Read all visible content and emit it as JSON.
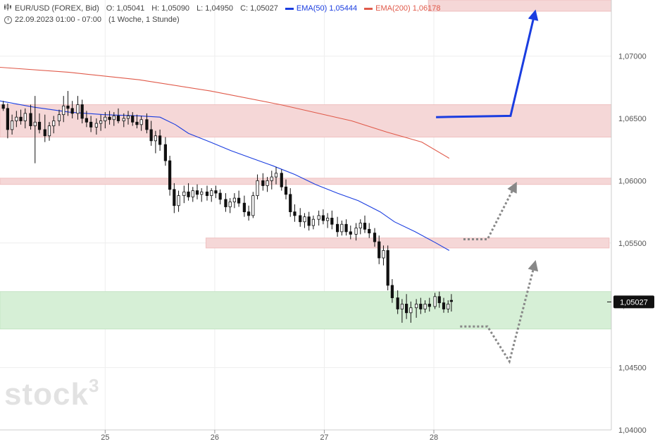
{
  "header": {
    "symbol": "EUR/USD (FOREX, Bid)",
    "open": "O: 1,05041",
    "high": "H: 1,05090",
    "low": "L: 1,04950",
    "close": "C: 1,05027",
    "ema50_label": "EMA(50)",
    "ema50_value": "1,05444",
    "ema200_label": "EMA(200)",
    "ema200_value": "1,06178",
    "period": "22.09.2023 01:00 - 07:00",
    "interval": "(1 Woche, 1 Stunde)"
  },
  "logo": {
    "text": "stock",
    "sup": "3"
  },
  "colors": {
    "ema50": "#1a3de0",
    "ema200": "#e05a4a",
    "resistance": "#f5d7d7",
    "support": "#d6efd6",
    "arrow_blue": "#1a3de0",
    "arrow_gray": "#888888"
  },
  "chart_data": {
    "type": "candlestick",
    "ylim": [
      1.04,
      1.0745
    ],
    "y_ticks": [
      1.04,
      1.045,
      1.05,
      1.055,
      1.06,
      1.065,
      1.07
    ],
    "y_tick_labels": [
      "1,04000",
      "1,04500",
      "1,05000",
      "1,05500",
      "1,06000",
      "1,06500",
      "1,07000"
    ],
    "x_ticks": [
      25,
      26,
      27,
      28
    ],
    "x_tick_labels": [
      "25",
      "26",
      "27",
      "28"
    ],
    "x_range": [
      24.04,
      29.62
    ],
    "last_price": 1.05027,
    "last_price_label": "1,05027",
    "zones": [
      {
        "kind": "resistance",
        "x_from": 24.04,
        "x_to": 29.62,
        "y_from": 1.0635,
        "y_to": 1.0661
      },
      {
        "kind": "resistance",
        "x_from": 24.04,
        "x_to": 29.62,
        "y_from": 1.0597,
        "y_to": 1.0602
      },
      {
        "kind": "resistance",
        "x_from": 25.92,
        "x_to": 29.6,
        "y_from": 1.0546,
        "y_to": 1.0554
      },
      {
        "kind": "resistance",
        "x_from": 27.95,
        "x_to": 29.62,
        "y_from": 1.0736,
        "y_to": 1.0745
      },
      {
        "kind": "support",
        "x_from": 24.04,
        "x_to": 29.62,
        "y_from": 1.0481,
        "y_to": 1.0511
      }
    ],
    "ema200": {
      "x": [
        24.04,
        24.67,
        25.31,
        25.96,
        26.6,
        27.25,
        27.57,
        27.89,
        28.14
      ],
      "y": [
        1.0691,
        1.0687,
        1.0681,
        1.0672,
        1.0661,
        1.0648,
        1.0639,
        1.0631,
        1.0618
      ]
    },
    "ema50": {
      "x": [
        24.04,
        24.35,
        24.67,
        24.99,
        25.31,
        25.5,
        25.64,
        25.76,
        25.96,
        26.15,
        26.34,
        26.53,
        26.73,
        26.92,
        27.12,
        27.31,
        27.51,
        27.64,
        27.83,
        28.02,
        28.14
      ],
      "y": [
        1.0664,
        1.0659,
        1.0655,
        1.0653,
        1.0652,
        1.0651,
        1.0645,
        1.0638,
        1.0631,
        1.0624,
        1.0618,
        1.0612,
        1.0605,
        1.0597,
        1.059,
        1.0584,
        1.0575,
        1.0567,
        1.0559,
        1.055,
        1.0544
      ]
    },
    "scenario_paths": [
      {
        "style": "blue-solid",
        "x": [
          28.02,
          28.7,
          28.92
        ],
        "y": [
          1.0651,
          1.0652,
          1.0734
        ]
      },
      {
        "style": "gray-dotted",
        "x": [
          28.27,
          28.49,
          28.74
        ],
        "y": [
          1.0553,
          1.0553,
          1.0596
        ]
      },
      {
        "style": "gray-dotted",
        "x": [
          28.24,
          28.49,
          28.69,
          28.92
        ],
        "y": [
          1.0483,
          1.0483,
          1.0455,
          1.0533
        ]
      }
    ],
    "candles": [
      [
        24.07,
        1.0661,
        1.0664,
        1.0656,
        1.0658
      ],
      [
        24.11,
        1.0658,
        1.0662,
        1.0634,
        1.0641
      ],
      [
        24.15,
        1.0641,
        1.0653,
        1.0637,
        1.0648
      ],
      [
        24.19,
        1.0648,
        1.0656,
        1.0643,
        1.0651
      ],
      [
        24.23,
        1.0651,
        1.0657,
        1.0645,
        1.0648
      ],
      [
        24.27,
        1.0648,
        1.0658,
        1.0642,
        1.0654
      ],
      [
        24.32,
        1.0654,
        1.0661,
        1.0641,
        1.0644
      ],
      [
        24.36,
        1.0644,
        1.0668,
        1.0614,
        1.0647
      ],
      [
        24.4,
        1.0647,
        1.0654,
        1.0638,
        1.0641
      ],
      [
        24.45,
        1.0641,
        1.0653,
        1.0631,
        1.0636
      ],
      [
        24.49,
        1.0636,
        1.0647,
        1.0632,
        1.0644
      ],
      [
        24.53,
        1.0644,
        1.0652,
        1.0638,
        1.0648
      ],
      [
        24.58,
        1.0648,
        1.0657,
        1.0644,
        1.0653
      ],
      [
        24.62,
        1.0653,
        1.0668,
        1.0647,
        1.066
      ],
      [
        24.66,
        1.066,
        1.0672,
        1.0652,
        1.0658
      ],
      [
        24.7,
        1.0658,
        1.0664,
        1.065,
        1.0654
      ],
      [
        24.75,
        1.0654,
        1.0668,
        1.0649,
        1.0661
      ],
      [
        24.79,
        1.0661,
        1.0665,
        1.0646,
        1.065
      ],
      [
        24.83,
        1.065,
        1.0656,
        1.0643,
        1.0647
      ],
      [
        24.87,
        1.0647,
        1.0652,
        1.0639,
        1.0643
      ],
      [
        24.92,
        1.0643,
        1.065,
        1.0637,
        1.0646
      ],
      [
        24.96,
        1.0646,
        1.0653,
        1.064,
        1.0648
      ],
      [
        25.0,
        1.0648,
        1.0655,
        1.0642,
        1.0651
      ],
      [
        25.04,
        1.0651,
        1.0656,
        1.0645,
        1.0649
      ],
      [
        25.08,
        1.0649,
        1.0655,
        1.0644,
        1.0652
      ],
      [
        25.12,
        1.0652,
        1.0658,
        1.0646,
        1.0648
      ],
      [
        25.17,
        1.0648,
        1.0654,
        1.0643,
        1.065
      ],
      [
        25.21,
        1.065,
        1.0656,
        1.0645,
        1.0652
      ],
      [
        25.25,
        1.0652,
        1.0655,
        1.0644,
        1.0647
      ],
      [
        25.29,
        1.0647,
        1.0653,
        1.0642,
        1.0645
      ],
      [
        25.33,
        1.0645,
        1.0652,
        1.064,
        1.0649
      ],
      [
        25.38,
        1.0649,
        1.0654,
        1.0638,
        1.0641
      ],
      [
        25.42,
        1.0641,
        1.0648,
        1.0628,
        1.0632
      ],
      [
        25.46,
        1.0632,
        1.064,
        1.0622,
        1.0636
      ],
      [
        25.5,
        1.0636,
        1.0641,
        1.0624,
        1.0629
      ],
      [
        25.55,
        1.0629,
        1.0635,
        1.0612,
        1.0616
      ],
      [
        25.59,
        1.0616,
        1.062,
        1.0588,
        1.0593
      ],
      [
        25.63,
        1.0593,
        1.0598,
        1.0574,
        1.058
      ],
      [
        25.67,
        1.058,
        1.0592,
        1.0575,
        1.0588
      ],
      [
        25.72,
        1.0588,
        1.0596,
        1.0582,
        1.0591
      ],
      [
        25.76,
        1.0591,
        1.0598,
        1.0584,
        1.0587
      ],
      [
        25.8,
        1.0587,
        1.0595,
        1.0583,
        1.0592
      ],
      [
        25.84,
        1.0592,
        1.0597,
        1.0585,
        1.0589
      ],
      [
        25.88,
        1.0589,
        1.0594,
        1.0583,
        1.0591
      ],
      [
        25.93,
        1.0591,
        1.0596,
        1.0584,
        1.0588
      ],
      [
        25.97,
        1.0588,
        1.0594,
        1.0583,
        1.0592
      ],
      [
        26.01,
        1.0592,
        1.0596,
        1.0586,
        1.059
      ],
      [
        26.05,
        1.059,
        1.0593,
        1.0581,
        1.0585
      ],
      [
        26.1,
        1.0585,
        1.059,
        1.0575,
        1.0579
      ],
      [
        26.14,
        1.0579,
        1.0586,
        1.0574,
        1.0583
      ],
      [
        26.18,
        1.0583,
        1.059,
        1.0578,
        1.0586
      ],
      [
        26.22,
        1.0586,
        1.0592,
        1.0579,
        1.0582
      ],
      [
        26.27,
        1.0582,
        1.0588,
        1.0571,
        1.0575
      ],
      [
        26.31,
        1.0575,
        1.058,
        1.0568,
        1.0572
      ],
      [
        26.35,
        1.0572,
        1.0591,
        1.057,
        1.0588
      ],
      [
        26.39,
        1.0588,
        1.0605,
        1.0585,
        1.06
      ],
      [
        26.44,
        1.06,
        1.0606,
        1.0592,
        1.0596
      ],
      [
        26.48,
        1.0596,
        1.0603,
        1.0591,
        1.06
      ],
      [
        26.52,
        1.06,
        1.0608,
        1.0593,
        1.0603
      ],
      [
        26.56,
        1.0603,
        1.0611,
        1.0597,
        1.0606
      ],
      [
        26.61,
        1.0606,
        1.0609,
        1.0592,
        1.0595
      ],
      [
        26.65,
        1.0595,
        1.0601,
        1.0585,
        1.0589
      ],
      [
        26.69,
        1.0589,
        1.0594,
        1.0571,
        1.0575
      ],
      [
        26.73,
        1.0575,
        1.0581,
        1.0567,
        1.0572
      ],
      [
        26.78,
        1.0572,
        1.0578,
        1.0563,
        1.0567
      ],
      [
        26.82,
        1.0567,
        1.0574,
        1.0562,
        1.0571
      ],
      [
        26.86,
        1.0571,
        1.0575,
        1.056,
        1.0564
      ],
      [
        26.9,
        1.0564,
        1.0572,
        1.0561,
        1.0569
      ],
      [
        26.95,
        1.0569,
        1.0576,
        1.0564,
        1.0572
      ],
      [
        26.99,
        1.0572,
        1.0577,
        1.0565,
        1.0568
      ],
      [
        27.03,
        1.0568,
        1.0574,
        1.0562,
        1.057
      ],
      [
        27.07,
        1.057,
        1.0576,
        1.0561,
        1.0565
      ],
      [
        27.12,
        1.0565,
        1.0571,
        1.0555,
        1.0559
      ],
      [
        27.16,
        1.0559,
        1.0568,
        1.0556,
        1.0565
      ],
      [
        27.2,
        1.0565,
        1.0569,
        1.0556,
        1.0559
      ],
      [
        27.24,
        1.0559,
        1.0564,
        1.0553,
        1.0557
      ],
      [
        27.29,
        1.0557,
        1.0566,
        1.0552,
        1.0562
      ],
      [
        27.33,
        1.0562,
        1.0569,
        1.0557,
        1.0566
      ],
      [
        27.37,
        1.0566,
        1.0572,
        1.0558,
        1.0561
      ],
      [
        27.41,
        1.0561,
        1.0566,
        1.0554,
        1.0558
      ],
      [
        27.46,
        1.0558,
        1.0562,
        1.0547,
        1.0551
      ],
      [
        27.5,
        1.0551,
        1.0556,
        1.0533,
        1.0538
      ],
      [
        27.54,
        1.0538,
        1.0548,
        1.0532,
        1.0544
      ],
      [
        27.58,
        1.0544,
        1.0548,
        1.0512,
        1.0516
      ],
      [
        27.62,
        1.0516,
        1.0521,
        1.0502,
        1.0506
      ],
      [
        27.67,
        1.0506,
        1.0512,
        1.0493,
        1.0497
      ],
      [
        27.71,
        1.0497,
        1.0505,
        1.0486,
        1.0501
      ],
      [
        27.75,
        1.0501,
        1.0509,
        1.0489,
        1.0494
      ],
      [
        27.79,
        1.0494,
        1.0503,
        1.0486,
        1.0498
      ],
      [
        27.84,
        1.0498,
        1.0505,
        1.049,
        1.0501
      ],
      [
        27.88,
        1.0501,
        1.0506,
        1.0493,
        1.0497
      ],
      [
        27.92,
        1.0497,
        1.0504,
        1.0494,
        1.0501
      ],
      [
        27.96,
        1.0501,
        1.0506,
        1.0495,
        1.0499
      ],
      [
        28.01,
        1.0499,
        1.051,
        1.0497,
        1.0507
      ],
      [
        28.05,
        1.0507,
        1.0511,
        1.0498,
        1.0502
      ],
      [
        28.09,
        1.0502,
        1.0506,
        1.0494,
        1.0497
      ],
      [
        28.13,
        1.0497,
        1.0504,
        1.0494,
        1.0501
      ],
      [
        28.16,
        1.0504,
        1.0509,
        1.0495,
        1.0503
      ]
    ]
  }
}
